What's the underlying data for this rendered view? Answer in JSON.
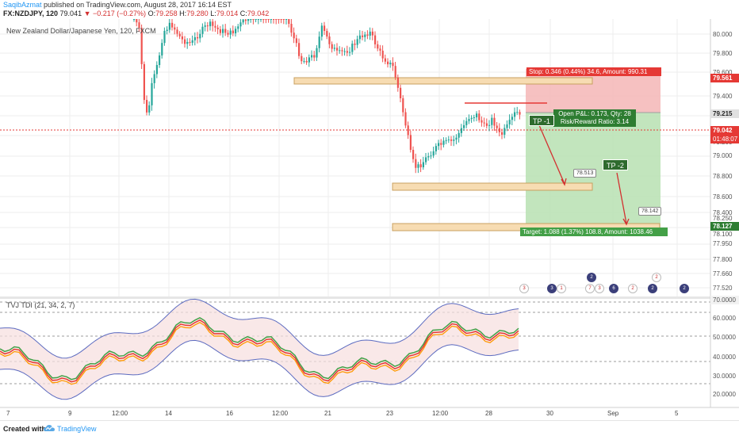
{
  "header": {
    "author": "SaqibAzmat",
    "published_text": " published on TradingView.com, August 28, 2017 16:14 EST",
    "symbol": "FX:NZDJPY, 120",
    "last": "79.041",
    "change": "▼ −0.217 (−0.27%)",
    "open_label": "O:",
    "open": "79.258",
    "high_label": "H:",
    "high": "79.280",
    "low_label": "L:",
    "low": "79.014",
    "close_label": "C:",
    "close": "79.042"
  },
  "chart": {
    "symbol_title": "New Zealand Dollar/Japanese Yen, 120, FXCM",
    "indicator_title": "TVJ TDI (21, 34, 2, 7)",
    "price_axis": [
      "80.000",
      "79.800",
      "79.600",
      "79.400",
      "79.200",
      "79.000",
      "78.800",
      "78.600",
      "78.400",
      "78.250",
      "78.100",
      "77.950",
      "77.800",
      "77.660",
      "77.520"
    ],
    "indicator_axis": [
      "70.0000",
      "60.0000",
      "50.0000",
      "40.0000",
      "30.0000",
      "20.0000"
    ],
    "price_tags": {
      "stop": "79.561",
      "entry": "79.215",
      "current": "79.042",
      "countdown": "01:48:07",
      "target": "78.127"
    },
    "x_axis": [
      "7",
      "9",
      "12:00",
      "14",
      "16",
      "12:00",
      "21",
      "23",
      "12:00",
      "28",
      "30",
      "Sep",
      "5"
    ],
    "colors": {
      "bull_candle": "#26a69a",
      "bear_candle": "#ef5350",
      "stop_zone": "#f4b6b6",
      "target_zone": "#b7e1b2",
      "support_zone": "#f7dcb2",
      "current_price": "#e53935"
    }
  },
  "position": {
    "stop_text": "Stop: 0.346 (0.44%) 34.6, Amount: 990.31",
    "pnl_line1": "Open P&L: 0.173, Qty: 28",
    "pnl_line2": "Risk/Reward Ratio: 3.14",
    "target_text": "Target: 1.088 (1.37%) 108.8, Amount: 1038.46"
  },
  "annotations": {
    "tp1": "TP -1",
    "tp2": "TP -2",
    "callout1": "78.513",
    "callout2": "78.142"
  },
  "events": [
    "3",
    "3",
    "1",
    "2",
    "7",
    "3",
    "6",
    "2",
    "2",
    "2",
    "2"
  ],
  "footer": {
    "created_with": "Created with",
    "brand": "TradingView"
  }
}
